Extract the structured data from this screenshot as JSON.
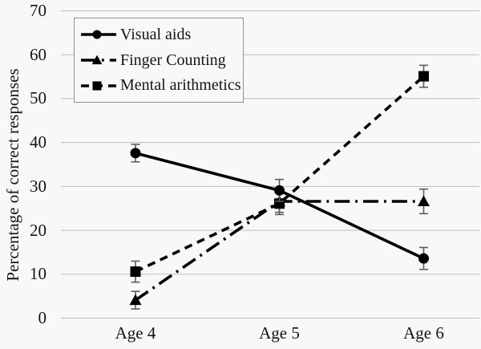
{
  "chart_data": {
    "type": "line",
    "title": "",
    "xlabel": "",
    "ylabel": "Percentage of correct responses",
    "categories": [
      "Age 4",
      "Age 5",
      "Age 6"
    ],
    "ylim": [
      0,
      70
    ],
    "yticks": [
      0,
      10,
      20,
      30,
      40,
      50,
      60,
      70
    ],
    "grid": "horizontal-light-gray",
    "legend_position": "top-left",
    "series": [
      {
        "name": "Visual aids",
        "marker": "circle",
        "linestyle": "solid",
        "values": [
          37.5,
          29,
          13.5
        ],
        "errors": [
          2.0,
          2.5,
          2.5
        ]
      },
      {
        "name": "Finger Counting",
        "marker": "triangle",
        "linestyle": "dashdot",
        "values": [
          4,
          26.5,
          26.5
        ],
        "errors": [
          2.0,
          2.5,
          2.8
        ]
      },
      {
        "name": "Mental arithmetics",
        "marker": "square",
        "linestyle": "dashed",
        "values": [
          10.5,
          26,
          55
        ],
        "errors": [
          2.4,
          2.5,
          2.5
        ]
      }
    ],
    "colors": {
      "series": "#000000",
      "grid": "#bdbdbd",
      "error_bar": "#5c5c5c",
      "background": "#f8f8f8",
      "legend_border": "#8f8f8f"
    }
  }
}
